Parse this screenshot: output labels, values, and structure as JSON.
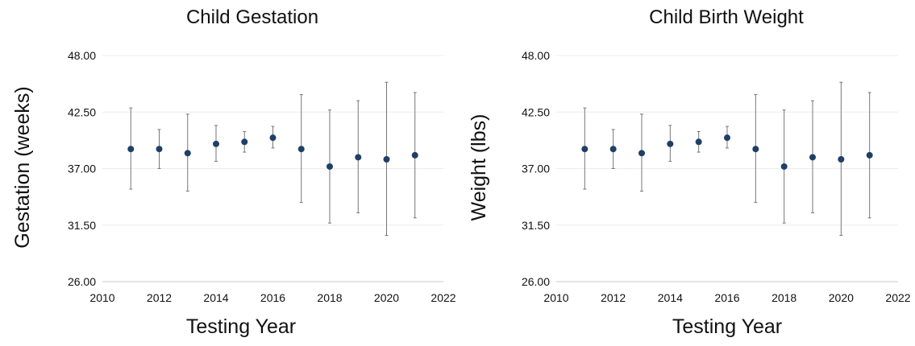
{
  "chart_data": [
    {
      "type": "scatter",
      "title": "Child Gestation",
      "xlabel": "Testing Year",
      "ylabel": "Gestation (weeks)",
      "xlim": [
        2010,
        2022
      ],
      "ylim": [
        26,
        48
      ],
      "xticks": [
        "2010",
        "2012",
        "2014",
        "2016",
        "2018",
        "2020",
        "2022"
      ],
      "yticks": [
        "26.00",
        "31.50",
        "37.00",
        "42.50",
        "48.00"
      ],
      "grid": true,
      "points": [
        {
          "x": 2011,
          "y": 38.9,
          "low": 35.0,
          "high": 42.9
        },
        {
          "x": 2012,
          "y": 38.9,
          "low": 37.0,
          "high": 40.8
        },
        {
          "x": 2013,
          "y": 38.5,
          "low": 34.8,
          "high": 42.3
        },
        {
          "x": 2014,
          "y": 39.4,
          "low": 37.7,
          "high": 41.2
        },
        {
          "x": 2015,
          "y": 39.6,
          "low": 38.6,
          "high": 40.6
        },
        {
          "x": 2016,
          "y": 40.0,
          "low": 39.0,
          "high": 41.1
        },
        {
          "x": 2017,
          "y": 38.9,
          "low": 33.7,
          "high": 44.2
        },
        {
          "x": 2018,
          "y": 37.2,
          "low": 31.7,
          "high": 42.7
        },
        {
          "x": 2019,
          "y": 38.1,
          "low": 32.7,
          "high": 43.6
        },
        {
          "x": 2020,
          "y": 37.9,
          "low": 30.5,
          "high": 45.4
        },
        {
          "x": 2021,
          "y": 38.3,
          "low": 32.2,
          "high": 44.4
        }
      ],
      "marker_color": "#1f3f66",
      "errorbar_color": "#777777"
    },
    {
      "type": "scatter",
      "title": "Child Birth Weight",
      "xlabel": "Testing Year",
      "ylabel": "Weight (lbs)",
      "xlim": [
        2010,
        2022
      ],
      "ylim": [
        26,
        48
      ],
      "xticks": [
        "2010",
        "2012",
        "2014",
        "2016",
        "2018",
        "2020",
        "2022"
      ],
      "yticks": [
        "26.00",
        "31.50",
        "37.00",
        "42.50",
        "48.00"
      ],
      "grid": true,
      "points": [
        {
          "x": 2011,
          "y": 38.9,
          "low": 35.0,
          "high": 42.9
        },
        {
          "x": 2012,
          "y": 38.9,
          "low": 37.0,
          "high": 40.8
        },
        {
          "x": 2013,
          "y": 38.5,
          "low": 34.8,
          "high": 42.3
        },
        {
          "x": 2014,
          "y": 39.4,
          "low": 37.7,
          "high": 41.2
        },
        {
          "x": 2015,
          "y": 39.6,
          "low": 38.6,
          "high": 40.6
        },
        {
          "x": 2016,
          "y": 40.0,
          "low": 39.0,
          "high": 41.1
        },
        {
          "x": 2017,
          "y": 38.9,
          "low": 33.7,
          "high": 44.2
        },
        {
          "x": 2018,
          "y": 37.2,
          "low": 31.7,
          "high": 42.7
        },
        {
          "x": 2019,
          "y": 38.1,
          "low": 32.7,
          "high": 43.6
        },
        {
          "x": 2020,
          "y": 37.9,
          "low": 30.5,
          "high": 45.4
        },
        {
          "x": 2021,
          "y": 38.3,
          "low": 32.2,
          "high": 44.4
        }
      ],
      "marker_color": "#1f3f66",
      "errorbar_color": "#777777"
    }
  ]
}
